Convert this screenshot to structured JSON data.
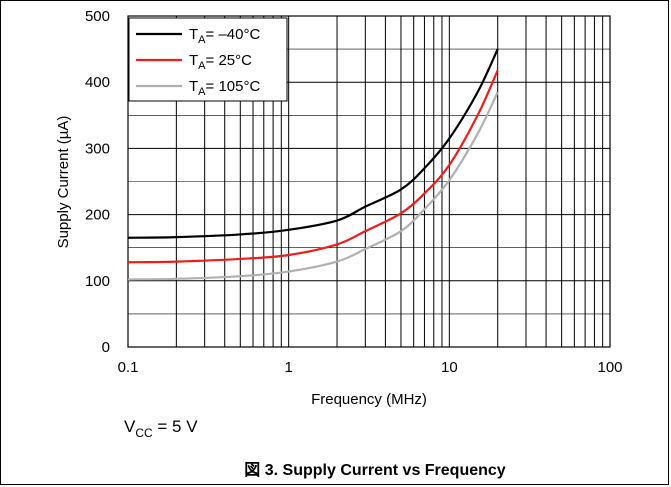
{
  "chart_data": {
    "type": "line",
    "title": "",
    "xlabel": "Frequency (MHz)",
    "ylabel": "Supply Current (µA)",
    "xscale": "log",
    "xlim": [
      0.1,
      100
    ],
    "ylim": [
      0,
      500
    ],
    "grid": true,
    "legend_position": "top-left",
    "x_ticks": [
      "0.1",
      "1",
      "10",
      "100"
    ],
    "y_ticks": [
      "0",
      "100",
      "200",
      "300",
      "400",
      "500"
    ],
    "series": [
      {
        "name_prefix": "T",
        "name_sub": "A",
        "name_suffix": "= –40°C",
        "color": "#000000",
        "x": [
          0.1,
          0.2,
          0.5,
          1,
          2,
          3,
          5,
          7,
          10,
          15,
          20
        ],
        "y": [
          165,
          166,
          170,
          177,
          191,
          212,
          238,
          270,
          315,
          385,
          450
        ]
      },
      {
        "name_prefix": "T",
        "name_sub": "A",
        "name_suffix": "= 25°C",
        "color": "#ee1c1c",
        "x": [
          0.1,
          0.2,
          0.5,
          1,
          2,
          3,
          5,
          7,
          10,
          15,
          20
        ],
        "y": [
          128,
          129,
          133,
          139,
          155,
          175,
          202,
          232,
          275,
          350,
          418
        ]
      },
      {
        "name_prefix": "T",
        "name_sub": "A",
        "name_suffix": "= 105°C",
        "color": "#b0b0b0",
        "x": [
          0.1,
          0.2,
          0.5,
          1,
          2,
          3,
          5,
          7,
          10,
          15,
          20
        ],
        "y": [
          102,
          103,
          107,
          114,
          129,
          148,
          175,
          208,
          252,
          322,
          385
        ]
      }
    ]
  },
  "note": {
    "prefix": "V",
    "sub": "CC",
    "suffix": " = 5 V"
  },
  "caption": "図 3. Supply Current vs Frequency"
}
